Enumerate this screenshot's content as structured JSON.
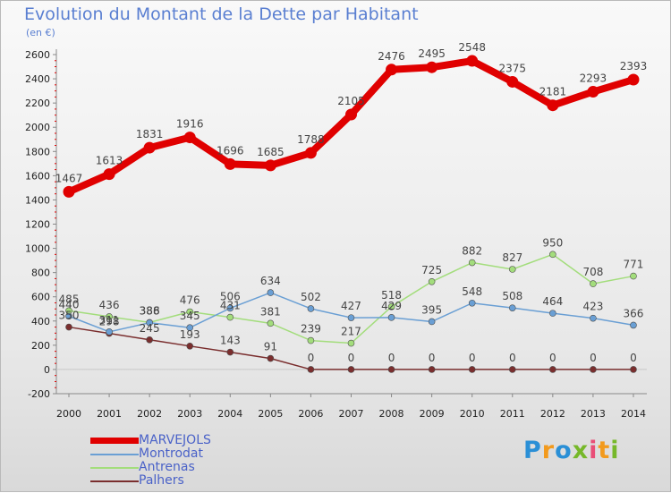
{
  "title": "Evolution du Montant de la Dette par Habitant",
  "unit": "(en €)",
  "logo": {
    "letters": [
      "P",
      "r",
      "o",
      "x",
      "i",
      "t",
      "i"
    ],
    "colors": [
      "#2a8fd6",
      "#f29a1d",
      "#2a8fd6",
      "#76b82a",
      "#e94e77",
      "#f29a1d",
      "#76b82a"
    ]
  },
  "chart_data": {
    "type": "line",
    "x": [
      "2000",
      "2001",
      "2002",
      "2003",
      "2004",
      "2005",
      "2006",
      "2007",
      "2008",
      "2009",
      "2010",
      "2011",
      "2012",
      "2013",
      "2014"
    ],
    "ylim": [
      -200,
      2600
    ],
    "yticks": [
      -200,
      0,
      200,
      400,
      600,
      800,
      1000,
      1200,
      1400,
      1600,
      1800,
      2000,
      2200,
      2400,
      2600
    ],
    "grid": false,
    "legend_position": "bottom-left",
    "series": [
      {
        "name": "MARVEJOLS",
        "color": "#e00000",
        "width": 8,
        "marker": 6.5,
        "values": [
          1467,
          1613,
          1831,
          1916,
          1696,
          1685,
          1788,
          2105,
          2476,
          2495,
          2548,
          2375,
          2181,
          2293,
          2393
        ]
      },
      {
        "name": "Montrodat",
        "color": "#6a9fd4",
        "width": 1.5,
        "marker": 3.5,
        "values": [
          440,
          311,
          386,
          345,
          506,
          634,
          502,
          427,
          429,
          395,
          548,
          508,
          464,
          423,
          366
        ]
      },
      {
        "name": "Antrenas",
        "color": "#a3dd7c",
        "width": 1.5,
        "marker": 3.5,
        "values": [
          485,
          436,
          388,
          476,
          431,
          381,
          239,
          217,
          518,
          725,
          882,
          827,
          950,
          708,
          771
        ]
      },
      {
        "name": "Palhers",
        "color": "#7a2e2e",
        "width": 1.5,
        "marker": 3.5,
        "values": [
          350,
          298,
          245,
          193,
          143,
          91,
          0,
          0,
          0,
          0,
          0,
          0,
          0,
          0,
          0
        ]
      }
    ],
    "labels": [
      [
        "1467",
        "1613",
        "1831",
        "1916",
        "1696",
        "1685",
        "1788",
        "2105",
        "2476",
        "2495",
        "2548",
        "2375",
        "2181",
        "2293",
        "2393"
      ],
      [
        "440",
        "311",
        "386",
        "345",
        "506",
        "634",
        "502",
        "427",
        "429",
        "395",
        "548",
        "508",
        "464",
        "423",
        "366"
      ],
      [
        "485",
        "436",
        "388",
        "476",
        "431",
        "381",
        "239",
        "217",
        "518",
        "725",
        "882",
        "827",
        "950",
        "708",
        "771"
      ],
      [
        "350",
        "298",
        "245",
        "193",
        "143",
        "91",
        "0",
        "0",
        "0",
        "0",
        "0",
        "0",
        "0",
        "0",
        "0"
      ]
    ]
  }
}
